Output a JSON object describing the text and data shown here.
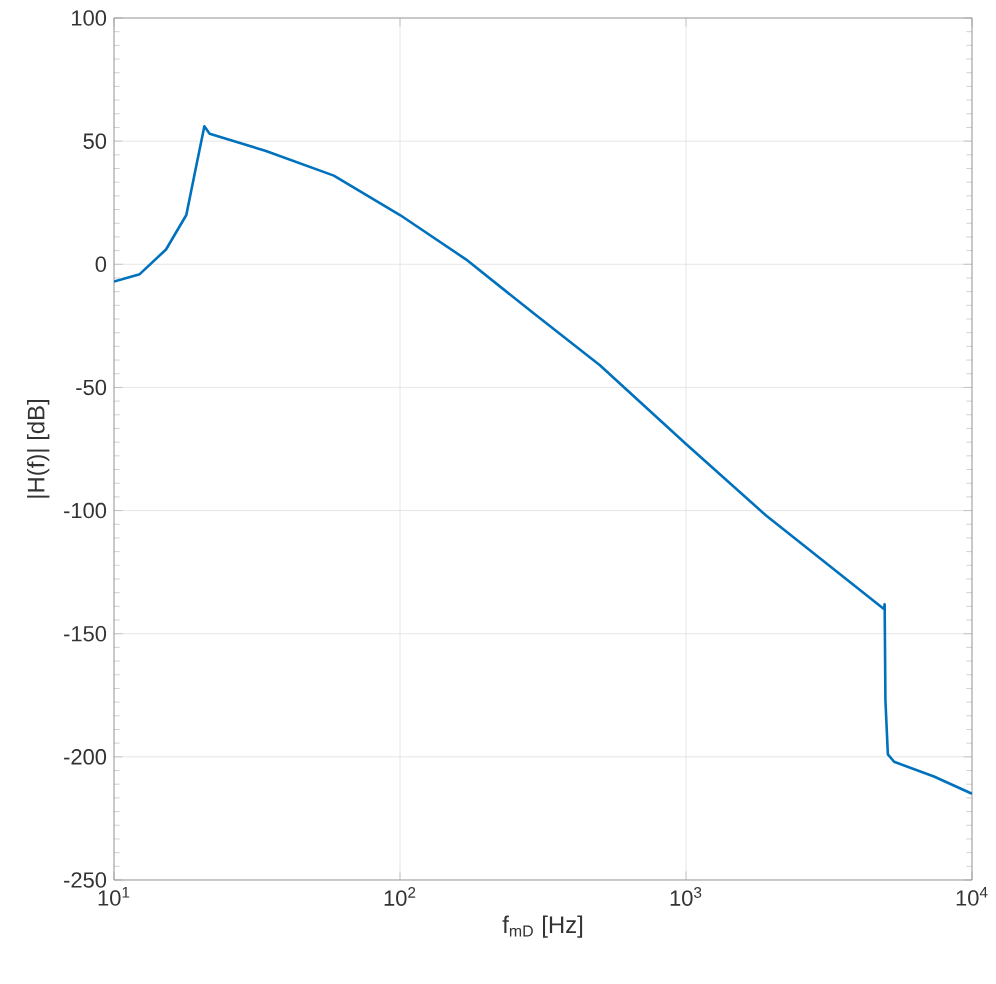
{
  "chart_data": {
    "type": "line",
    "xlabel": "f$_{mD}$ [Hz]",
    "ylabel": "|H(f)| [dB]",
    "log": "x",
    "grid": true,
    "xlim": [
      10,
      10000
    ],
    "ylim": [
      -250,
      100
    ],
    "xticks": [
      {
        "value": 10,
        "label": "10$^{1}$"
      },
      {
        "value": 100,
        "label": "10$^{2}$"
      },
      {
        "value": 1000,
        "label": "10$^{3}$"
      },
      {
        "value": 10000,
        "label": "10$^{4}$"
      }
    ],
    "yticks": [
      -250,
      -200,
      -150,
      -100,
      -50,
      0,
      50,
      100
    ],
    "series": [
      {
        "color": "#0072bd",
        "x": [
          10,
          12.3,
          15.2,
          17.9,
          19.4,
          20.7,
          21.6,
          34,
          58.7,
          100,
          170,
          294,
          500,
          1000,
          1905,
          4920,
          4950,
          4980,
          5080,
          5340,
          7360,
          10000
        ],
        "values": [
          -7,
          -4,
          6,
          20,
          40,
          56,
          53,
          46,
          36,
          20,
          2,
          -20,
          -41,
          -73,
          -102,
          -140,
          -138,
          -177,
          -199,
          -202,
          -208,
          -215
        ]
      }
    ]
  }
}
